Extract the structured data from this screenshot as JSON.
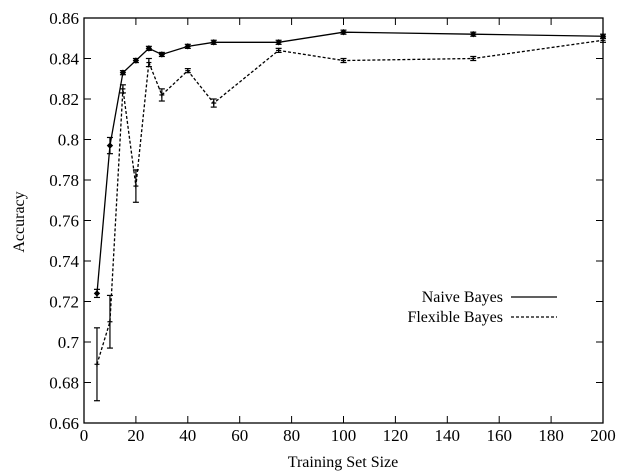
{
  "chart_data": {
    "type": "line",
    "title": "",
    "xlabel": "Training Set Size",
    "ylabel": "Accuracy",
    "xlim": [
      0,
      200
    ],
    "ylim": [
      0.66,
      0.86
    ],
    "xticks": [
      "0",
      "20",
      "40",
      "60",
      "80",
      "100",
      "120",
      "140",
      "160",
      "180",
      "200"
    ],
    "yticks": [
      "0.66",
      "0.68",
      "0.7",
      "0.72",
      "0.74",
      "0.76",
      "0.78",
      "0.8",
      "0.82",
      "0.84",
      "0.86"
    ],
    "grid": false,
    "legend_position": "right",
    "series": [
      {
        "name": "Naive Bayes",
        "line_style": "solid",
        "marker": "diamond",
        "x": [
          5,
          10,
          15,
          20,
          25,
          30,
          40,
          50,
          75,
          100,
          150,
          200
        ],
        "y": [
          0.724,
          0.797,
          0.833,
          0.839,
          0.845,
          0.842,
          0.846,
          0.848,
          0.848,
          0.853,
          0.852,
          0.851
        ],
        "err": [
          0.002,
          0.004,
          0.001,
          0.001,
          0.001,
          0.001,
          0.001,
          0.001,
          0.001,
          0.001,
          0.001,
          0.001
        ]
      },
      {
        "name": "Flexible Bayes",
        "line_style": "dashed",
        "marker": "plus",
        "x": [
          5,
          10,
          15,
          20,
          25,
          30,
          40,
          50,
          75,
          100,
          150,
          200
        ],
        "y": [
          0.689,
          0.71,
          0.825,
          0.777,
          0.838,
          0.822,
          0.834,
          0.818,
          0.844,
          0.839,
          0.84,
          0.849
        ],
        "err": [
          0.018,
          0.013,
          0.002,
          0.008,
          0.002,
          0.003,
          0.001,
          0.002,
          0.001,
          0.001,
          0.001,
          0.001
        ]
      }
    ]
  }
}
